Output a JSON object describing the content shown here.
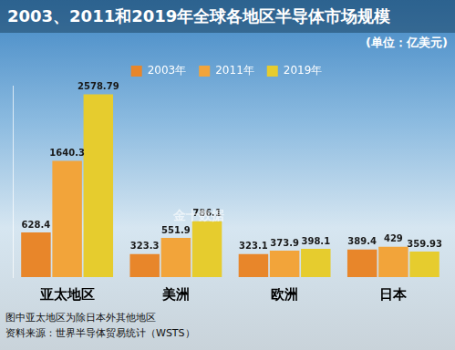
{
  "chart_data": {
    "type": "bar",
    "title": "2003、2011和2019年全球各地区半导体市场规模",
    "subtitle": "(单位：亿美元)",
    "categories": [
      "亚太地区",
      "美洲",
      "欧洲",
      "日本"
    ],
    "series": [
      {
        "name": "2003年",
        "color": "#e8862a",
        "values": [
          628.4,
          323.3,
          323.1,
          389.4
        ]
      },
      {
        "name": "2011年",
        "color": "#f2a43a",
        "values": [
          1640.3,
          551.9,
          373.9,
          429
        ]
      },
      {
        "name": "2019年",
        "color": "#e6cc2e",
        "values": [
          2578.79,
          786.1,
          398.1,
          359.93
        ]
      }
    ],
    "ylim": [
      0,
      2700
    ],
    "grid": false,
    "legend": "top",
    "data_labels": true,
    "tick_labels": "x",
    "notes": [
      "图中亚太地区为除日本外其他地区",
      "资料来源：世界半导体贸易统计（WSTS）"
    ],
    "watermark": "金十数据"
  }
}
